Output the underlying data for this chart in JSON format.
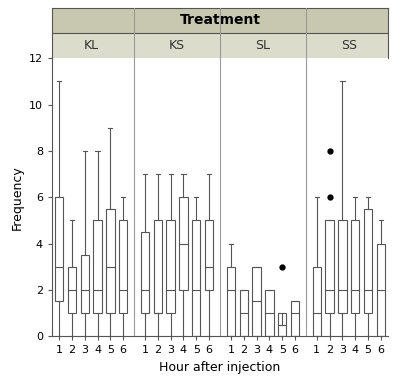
{
  "title": "Treatment",
  "xlabel": "Hour after injection",
  "ylabel": "Frequency",
  "ylim": [
    0,
    12
  ],
  "yticks": [
    0,
    2,
    4,
    6,
    8,
    10,
    12
  ],
  "groups": [
    "KL",
    "KS",
    "SL",
    "SS"
  ],
  "hours": [
    1,
    2,
    3,
    4,
    5,
    6
  ],
  "header_color_top": "#c8c8b0",
  "header_color_bottom": "#dcdccc",
  "divider_color": "#999999",
  "box_edge_color": "#555555",
  "spine_color": "#555555",
  "flier_color": "black",
  "boxplot_data": {
    "KL": {
      "1": {
        "q1": 1.5,
        "median": 3.0,
        "q3": 6.0,
        "whislo": 0.0,
        "whishi": 11.0,
        "fliers": []
      },
      "2": {
        "q1": 1.0,
        "median": 2.0,
        "q3": 3.0,
        "whislo": 0.0,
        "whishi": 5.0,
        "fliers": []
      },
      "3": {
        "q1": 1.0,
        "median": 2.0,
        "q3": 3.5,
        "whislo": 0.0,
        "whishi": 8.0,
        "fliers": []
      },
      "4": {
        "q1": 1.0,
        "median": 2.0,
        "q3": 5.0,
        "whislo": 0.0,
        "whishi": 8.0,
        "fliers": []
      },
      "5": {
        "q1": 1.0,
        "median": 3.0,
        "q3": 5.5,
        "whislo": 0.0,
        "whishi": 9.0,
        "fliers": []
      },
      "6": {
        "q1": 1.0,
        "median": 2.0,
        "q3": 5.0,
        "whislo": 0.0,
        "whishi": 6.0,
        "fliers": []
      }
    },
    "KS": {
      "1": {
        "q1": 1.0,
        "median": 2.0,
        "q3": 4.5,
        "whislo": 0.0,
        "whishi": 7.0,
        "fliers": []
      },
      "2": {
        "q1": 1.0,
        "median": 1.0,
        "q3": 5.0,
        "whislo": 0.0,
        "whishi": 7.0,
        "fliers": []
      },
      "3": {
        "q1": 1.0,
        "median": 2.0,
        "q3": 5.0,
        "whislo": 0.0,
        "whishi": 7.0,
        "fliers": []
      },
      "4": {
        "q1": 2.0,
        "median": 4.0,
        "q3": 6.0,
        "whislo": 0.0,
        "whishi": 7.0,
        "fliers": []
      },
      "5": {
        "q1": 0.0,
        "median": 2.0,
        "q3": 5.0,
        "whislo": 0.0,
        "whishi": 6.0,
        "fliers": []
      },
      "6": {
        "q1": 2.0,
        "median": 3.0,
        "q3": 5.0,
        "whislo": 0.0,
        "whishi": 7.0,
        "fliers": []
      }
    },
    "SL": {
      "1": {
        "q1": 0.0,
        "median": 2.0,
        "q3": 3.0,
        "whislo": 0.0,
        "whishi": 4.0,
        "fliers": []
      },
      "2": {
        "q1": 0.0,
        "median": 1.0,
        "q3": 2.0,
        "whislo": 0.0,
        "whishi": 2.0,
        "fliers": []
      },
      "3": {
        "q1": 0.0,
        "median": 1.5,
        "q3": 3.0,
        "whislo": 0.0,
        "whishi": 3.0,
        "fliers": []
      },
      "4": {
        "q1": 0.0,
        "median": 1.0,
        "q3": 2.0,
        "whislo": 0.0,
        "whishi": 2.0,
        "fliers": []
      },
      "5": {
        "q1": 0.0,
        "median": 0.5,
        "q3": 1.0,
        "whislo": 0.0,
        "whishi": 0.5,
        "fliers": [
          3.0
        ]
      },
      "6": {
        "q1": 0.0,
        "median": 1.0,
        "q3": 1.5,
        "whislo": 0.0,
        "whishi": 1.5,
        "fliers": []
      }
    },
    "SS": {
      "1": {
        "q1": 0.0,
        "median": 1.0,
        "q3": 3.0,
        "whislo": 0.0,
        "whishi": 6.0,
        "fliers": []
      },
      "2": {
        "q1": 1.0,
        "median": 2.0,
        "q3": 5.0,
        "whislo": 0.0,
        "whishi": 5.0,
        "fliers": [
          6.0,
          8.0
        ]
      },
      "3": {
        "q1": 1.0,
        "median": 2.0,
        "q3": 5.0,
        "whislo": 0.0,
        "whishi": 11.0,
        "fliers": []
      },
      "4": {
        "q1": 1.0,
        "median": 2.0,
        "q3": 5.0,
        "whislo": 0.0,
        "whishi": 6.0,
        "fliers": []
      },
      "5": {
        "q1": 1.0,
        "median": 2.0,
        "q3": 5.5,
        "whislo": 0.0,
        "whishi": 6.0,
        "fliers": []
      },
      "6": {
        "q1": 0.0,
        "median": 2.0,
        "q3": 4.0,
        "whislo": 0.0,
        "whishi": 5.0,
        "fliers": []
      }
    }
  }
}
